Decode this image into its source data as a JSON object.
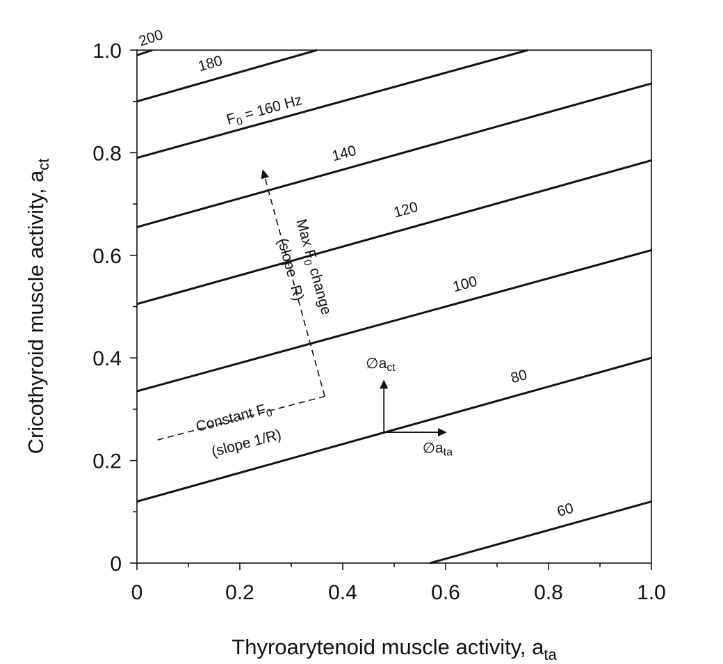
{
  "chart_data": {
    "type": "line",
    "xlabel": "Thyroarytenoid muscle activity, a",
    "xlabel_sub": "ta",
    "ylabel": "Cricothyroid muscle activity, a",
    "ylabel_sub": "ct",
    "xlim": [
      0,
      1.0
    ],
    "ylim": [
      0,
      1.0
    ],
    "x_ticks": [
      "0",
      "0.2",
      "0.4",
      "0.6",
      "0.8",
      "1.0"
    ],
    "y_ticks": [
      "0",
      "0.2",
      "0.4",
      "0.6",
      "0.8",
      "1.0"
    ],
    "grid": false,
    "contours": [
      {
        "label": "60",
        "points": [
          [
            0.57,
            0.0
          ],
          [
            1.0,
            0.12
          ]
        ]
      },
      {
        "label": "80",
        "points": [
          [
            0.0,
            0.12
          ],
          [
            1.0,
            0.4
          ]
        ]
      },
      {
        "label": "100",
        "points": [
          [
            0.0,
            0.335
          ],
          [
            1.0,
            0.61
          ]
        ]
      },
      {
        "label": "120",
        "points": [
          [
            0.0,
            0.505
          ],
          [
            1.0,
            0.785
          ]
        ]
      },
      {
        "label": "140",
        "points": [
          [
            0.0,
            0.655
          ],
          [
            1.0,
            0.935
          ]
        ]
      },
      {
        "label": "160",
        "points": [
          [
            0.0,
            0.79
          ],
          [
            0.76,
            1.0
          ]
        ]
      },
      {
        "label": "180",
        "points": [
          [
            0.0,
            0.9
          ],
          [
            0.35,
            1.0
          ]
        ]
      },
      {
        "label": "200",
        "points": [
          [
            0.0,
            0.99
          ],
          [
            0.03,
            1.0
          ]
        ]
      }
    ],
    "contour_label_prefix": "F",
    "contour_label_sub": "0",
    "contour_label_suffix": " = 160 Hz",
    "annotations": {
      "constant_line1": "Constant F",
      "constant_sub": "0",
      "constant_line2": "(slope 1/R)",
      "max_line1": "Max F",
      "max_sub": "0",
      "max_line1_end": " change",
      "max_line2": "(slope -R)",
      "delta_act_base": "∅a",
      "delta_act_sub": "ct",
      "delta_ata_base": "∅a",
      "delta_ata_sub": "ta"
    },
    "constant_path": [
      [
        0.04,
        0.24
      ],
      [
        0.365,
        0.325
      ]
    ],
    "max_path": [
      [
        0.365,
        0.325
      ],
      [
        0.245,
        0.765
      ]
    ],
    "delta_origin": [
      0.48,
      0.255
    ],
    "delta_ct_end": [
      0.48,
      0.355
    ],
    "delta_ta_end": [
      0.6,
      0.255
    ]
  }
}
